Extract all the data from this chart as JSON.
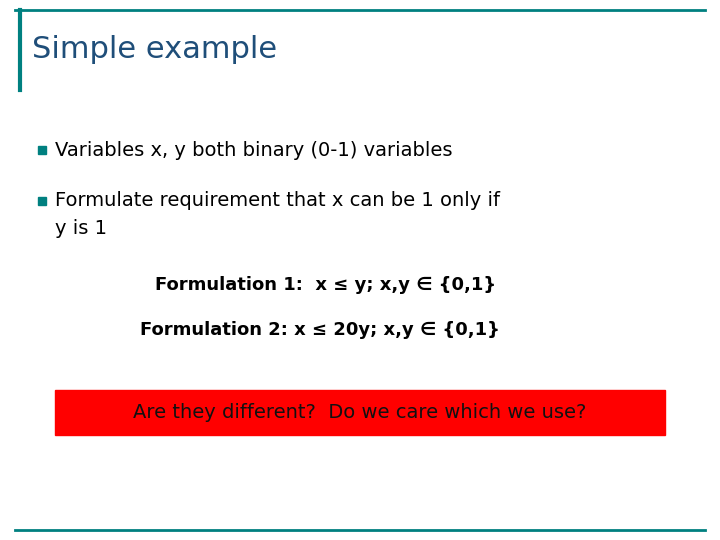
{
  "title": "Simple example",
  "title_color": "#1F4E79",
  "title_fontsize": 22,
  "bg_color": "#FFFFFF",
  "border_color": "#008080",
  "bullet_color": "#008080",
  "bullet1": "Variables x, y both binary (0-1) variables",
  "bullet2_line1": "Formulate requirement that x can be 1 only if",
  "bullet2_line2": "y is 1",
  "form1": "Formulation 1:  x ≤ y; x,y ∈ {0,1}",
  "form2": "Formulation 2: x ≤ 20y; x,y ∈ {0,1}",
  "highlight_text": "Are they different?  Do we care which we use?",
  "highlight_bg": "#FF0000",
  "highlight_text_color": "#111111",
  "text_color": "#000000",
  "main_fontsize": 14,
  "form_fontsize": 13,
  "highlight_fontsize": 14
}
